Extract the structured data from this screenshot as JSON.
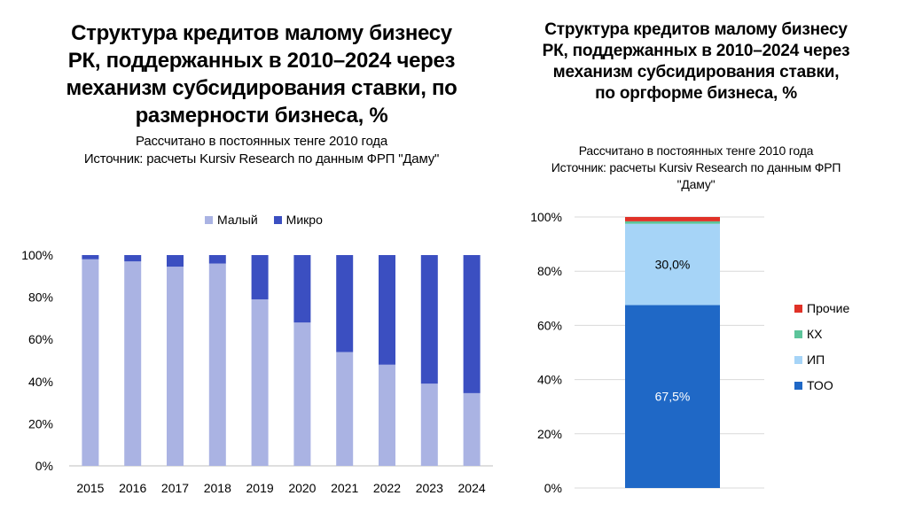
{
  "left_title": "Структура кредитов малому бизнесу РК, поддержанных в 2010–2024 через механизм субсидирования ставки, по размерности бизнеса, %",
  "left_subtitle_1": "Рассчитано в постоянных тенге 2010 года",
  "left_subtitle_2": "Источник: расчеты Kursiv Research по данным ФРП \"Даму\"",
  "right_title": "Структура кредитов малому бизнесу РК, поддержанных в 2010–2024 через механизм субсидирования ставки, по оргформе бизнеса, %",
  "right_subtitle_1": "Рассчитано в постоянных тенге 2010 года",
  "right_subtitle_2": "Источник: расчеты Kursiv Research по данным ФРП \"Даму\"",
  "chart_data": [
    {
      "type": "bar",
      "stacked": true,
      "categories": [
        "2015",
        "2016",
        "2017",
        "2018",
        "2019",
        "2020",
        "2021",
        "2022",
        "2023",
        "2024"
      ],
      "series": [
        {
          "name": "Малый",
          "color": "#aab3e3",
          "values": [
            98,
            97,
            94.5,
            96,
            79,
            68,
            54,
            48,
            39,
            34.5
          ]
        },
        {
          "name": "Микро",
          "color": "#3b4fc1",
          "values": [
            2,
            3,
            5.5,
            4,
            21,
            32,
            46,
            52,
            61,
            65.5
          ]
        }
      ],
      "ylim": [
        0,
        100
      ],
      "yticks": [
        "0%",
        "20%",
        "40%",
        "60%",
        "80%",
        "100%"
      ],
      "legend": "top"
    },
    {
      "type": "bar",
      "stacked": true,
      "categories": [
        ""
      ],
      "series": [
        {
          "name": "ТОО",
          "color": "#1f68c6",
          "values": [
            67.5
          ],
          "label": "67,5%"
        },
        {
          "name": "ИП",
          "color": "#a6d4f7",
          "values": [
            30.0
          ],
          "label": "30,0%"
        },
        {
          "name": "КХ",
          "color": "#5cc49a",
          "values": [
            0.9
          ],
          "label": ""
        },
        {
          "name": "Прочие",
          "color": "#e03127",
          "values": [
            1.6
          ],
          "label": ""
        }
      ],
      "ylim": [
        0,
        100
      ],
      "yticks": [
        "0%",
        "20%",
        "40%",
        "60%",
        "80%",
        "100%"
      ],
      "legend": "right"
    }
  ]
}
